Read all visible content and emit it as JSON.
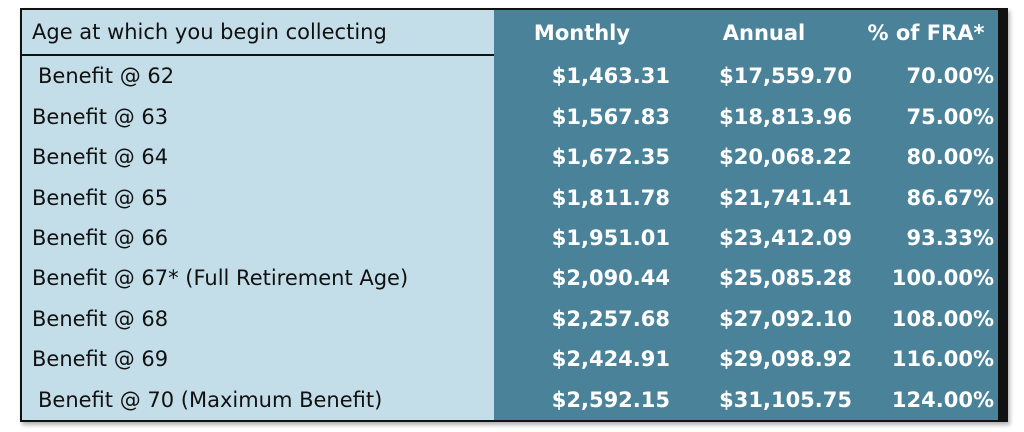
{
  "table": {
    "header": [
      "Age at which you begin collecting",
      "Monthly",
      "Annual",
      "% of FRA*"
    ],
    "rows": [
      [
        "Benefit @ 62",
        "$1,463.31",
        "$17,559.70",
        "70.00%"
      ],
      [
        "Benefit @ 63",
        "$1,567.83",
        "$18,813.96",
        "75.00%"
      ],
      [
        "Benefit @ 64",
        "$1,672.35",
        "$20,068.22",
        "80.00%"
      ],
      [
        "Benefit @ 65",
        "$1,811.78",
        "$21,741.41",
        "86.67%"
      ],
      [
        "Benefit @ 66",
        "$1,951.01",
        "$23,412.09",
        "93.33%"
      ],
      [
        "Benefit @ 67* (Full Retirement Age)",
        "$2,090.44",
        "$25,085.28",
        "100.00%"
      ],
      [
        "Benefit @ 68",
        "$2,257.68",
        "$27,092.10",
        "108.00%"
      ],
      [
        "Benefit @ 69",
        "$2,424.91",
        "$29,098.92",
        "116.00%"
      ],
      [
        "Benefit @ 70 (Maximum Benefit)",
        "$2,592.15",
        "$31,105.75",
        "124.00%"
      ]
    ]
  }
}
